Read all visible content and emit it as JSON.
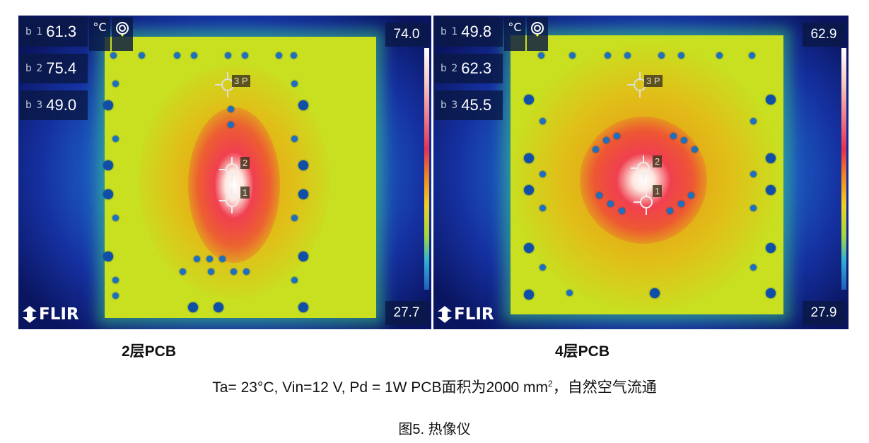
{
  "figure": {
    "panels": [
      {
        "caption": "2层PCB",
        "readouts": [
          {
            "tag": "b 1",
            "value": "61.3"
          },
          {
            "tag": "b 2",
            "value": "75.4"
          },
          {
            "tag": "b 3",
            "value": "49.0"
          }
        ],
        "unit": "°C",
        "scale_max": "74.0",
        "scale_min": "27.7",
        "logo": "FLIR",
        "markers": [
          "3 P",
          "2",
          "1"
        ]
      },
      {
        "caption": "4层PCB",
        "readouts": [
          {
            "tag": "b 1",
            "value": "49.8"
          },
          {
            "tag": "b 2",
            "value": "62.3"
          },
          {
            "tag": "b 3",
            "value": "45.5"
          }
        ],
        "unit": "°C",
        "scale_max": "62.9",
        "scale_min": "27.9",
        "logo": "FLIR",
        "markers": [
          "3 P",
          "2",
          "1"
        ]
      }
    ],
    "conditions": "Ta= 23°C, Vin=12 V, Pd = 1W PCB面积为2000 mm",
    "conditions_sup": "2",
    "conditions_tail": "，自然空气流通",
    "title": "图5. 热像仪",
    "icons": [
      "target-icon",
      "crosshair-icon",
      "flir-logo-icon"
    ]
  }
}
